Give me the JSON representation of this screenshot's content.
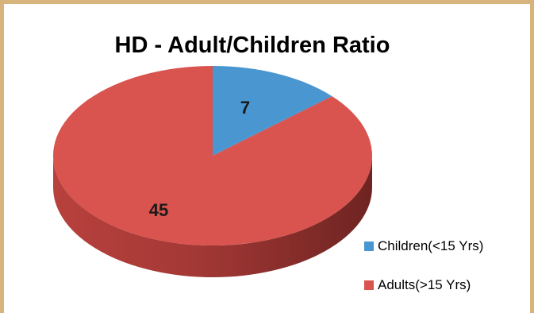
{
  "chart_data": {
    "type": "pie",
    "title": "HD - Adult/Children Ratio",
    "categories": [
      "Children(<15 Yrs)",
      "Adults(>15 Yrs)"
    ],
    "values": [
      7,
      45
    ],
    "colors": [
      "#4a96d0",
      "#d9534f"
    ],
    "dark_colors": [
      "#2f6a99",
      "#9e2f2c"
    ],
    "style": "3d",
    "legend_position": "bottom-right"
  }
}
